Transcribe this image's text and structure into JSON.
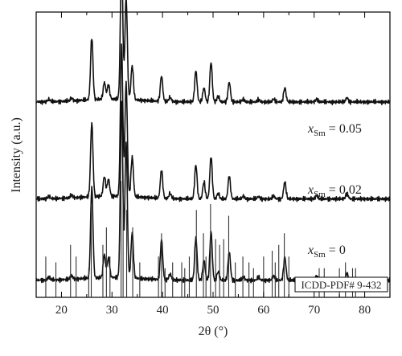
{
  "chart_data": {
    "type": "line",
    "xlabel": "2θ (°)",
    "ylabel": "Intensity (a.u.)",
    "xlim": [
      15,
      85
    ],
    "xticks": [
      20,
      30,
      40,
      50,
      60,
      70,
      80
    ],
    "grid": false,
    "y_ticks_shown": false,
    "series": [
      {
        "name": "x_Sm = 0.05",
        "label_main": "x",
        "label_sub": "Sm",
        "label_value": " = 0.05",
        "baseline": 0.685,
        "peaks": [
          [
            17.5,
            0.008
          ],
          [
            22.0,
            0.01
          ],
          [
            26.0,
            0.22
          ],
          [
            28.5,
            0.06
          ],
          [
            29.3,
            0.05
          ],
          [
            31.9,
            0.5
          ],
          [
            32.8,
            0.36
          ],
          [
            34.0,
            0.12
          ],
          [
            39.8,
            0.09
          ],
          [
            41.5,
            0.015
          ],
          [
            46.6,
            0.11
          ],
          [
            48.2,
            0.05
          ],
          [
            49.6,
            0.14
          ],
          [
            51.0,
            0.02
          ],
          [
            53.2,
            0.07
          ],
          [
            56.0,
            0.01
          ],
          [
            59.0,
            0.008
          ],
          [
            62.0,
            0.01
          ],
          [
            64.2,
            0.05
          ],
          [
            70.5,
            0.01
          ],
          [
            76.5,
            0.015
          ]
        ]
      },
      {
        "name": "x_Sm = 0.02",
        "label_main": "x",
        "label_sub": "Sm",
        "label_value": " = 0.02",
        "baseline": 0.345,
        "peaks": [
          [
            17.5,
            0.008
          ],
          [
            22.0,
            0.01
          ],
          [
            26.0,
            0.26
          ],
          [
            28.5,
            0.07
          ],
          [
            29.3,
            0.06
          ],
          [
            31.9,
            0.53
          ],
          [
            32.8,
            0.4
          ],
          [
            34.0,
            0.14
          ],
          [
            39.8,
            0.1
          ],
          [
            41.5,
            0.018
          ],
          [
            46.6,
            0.12
          ],
          [
            48.2,
            0.06
          ],
          [
            49.6,
            0.15
          ],
          [
            51.0,
            0.02
          ],
          [
            53.2,
            0.08
          ],
          [
            56.0,
            0.01
          ],
          [
            59.0,
            0.008
          ],
          [
            62.0,
            0.01
          ],
          [
            64.2,
            0.06
          ],
          [
            70.5,
            0.012
          ],
          [
            76.5,
            0.02
          ]
        ]
      },
      {
        "name": "x_Sm = 0",
        "label_main": "x",
        "label_sub": "Sm",
        "label_value": " = 0",
        "baseline": 0.06,
        "peaks": [
          [
            17.5,
            0.01
          ],
          [
            22.0,
            0.012
          ],
          [
            26.0,
            0.32
          ],
          [
            28.5,
            0.08
          ],
          [
            29.3,
            0.07
          ],
          [
            31.9,
            0.62
          ],
          [
            32.8,
            0.48
          ],
          [
            34.0,
            0.16
          ],
          [
            39.8,
            0.14
          ],
          [
            41.5,
            0.02
          ],
          [
            46.6,
            0.15
          ],
          [
            48.2,
            0.07
          ],
          [
            49.6,
            0.17
          ],
          [
            51.0,
            0.03
          ],
          [
            53.2,
            0.1
          ],
          [
            56.0,
            0.012
          ],
          [
            59.0,
            0.01
          ],
          [
            62.0,
            0.015
          ],
          [
            64.2,
            0.08
          ],
          [
            70.5,
            0.015
          ],
          [
            76.5,
            0.025
          ]
        ]
      }
    ],
    "reference": {
      "label": "ICDD-PDF# 9-432",
      "sticks": [
        [
          16.9,
          0.35
        ],
        [
          18.9,
          0.3
        ],
        [
          21.8,
          0.45
        ],
        [
          22.9,
          0.35
        ],
        [
          25.4,
          0.25
        ],
        [
          25.9,
          0.8
        ],
        [
          28.2,
          0.45
        ],
        [
          28.9,
          0.6
        ],
        [
          29.6,
          0.35
        ],
        [
          31.8,
          1.0
        ],
        [
          32.2,
          0.9
        ],
        [
          32.9,
          0.75
        ],
        [
          34.1,
          0.6
        ],
        [
          35.5,
          0.3
        ],
        [
          39.2,
          0.35
        ],
        [
          39.8,
          0.55
        ],
        [
          40.5,
          0.25
        ],
        [
          42.0,
          0.3
        ],
        [
          43.8,
          0.3
        ],
        [
          44.4,
          0.25
        ],
        [
          45.3,
          0.35
        ],
        [
          46.7,
          0.75
        ],
        [
          48.1,
          0.55
        ],
        [
          48.6,
          0.35
        ],
        [
          49.5,
          0.8
        ],
        [
          50.5,
          0.5
        ],
        [
          51.3,
          0.45
        ],
        [
          52.1,
          0.5
        ],
        [
          53.1,
          0.7
        ],
        [
          54.4,
          0.3
        ],
        [
          55.9,
          0.35
        ],
        [
          57.1,
          0.3
        ],
        [
          58.0,
          0.25
        ],
        [
          60.0,
          0.35
        ],
        [
          61.7,
          0.4
        ],
        [
          62.3,
          0.3
        ],
        [
          63.0,
          0.45
        ],
        [
          64.1,
          0.55
        ],
        [
          65.0,
          0.35
        ],
        [
          71.0,
          0.25
        ],
        [
          72.0,
          0.25
        ],
        [
          75.0,
          0.25
        ],
        [
          76.2,
          0.3
        ],
        [
          77.6,
          0.25
        ],
        [
          78.2,
          0.25
        ]
      ]
    }
  }
}
